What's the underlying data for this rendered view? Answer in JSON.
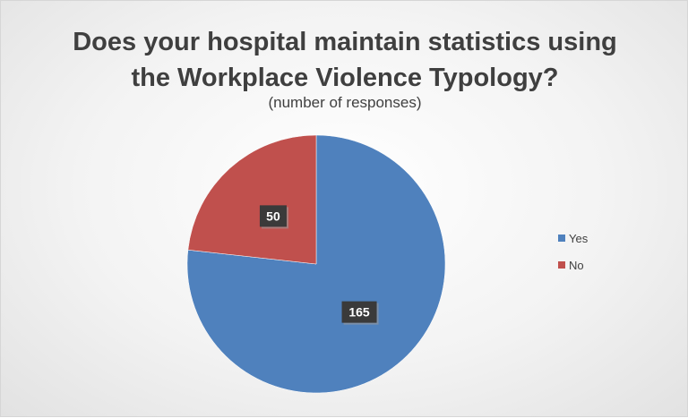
{
  "chart_data": {
    "type": "pie",
    "title_lines": [
      "Does your hospital maintain statistics using",
      "the Workplace Violence Typology?"
    ],
    "subtitle": "(number of responses)",
    "categories": [
      "Yes",
      "No"
    ],
    "values": [
      165,
      50
    ],
    "colors": [
      "#4f81bd",
      "#c0504d"
    ],
    "legend_position": "right"
  }
}
